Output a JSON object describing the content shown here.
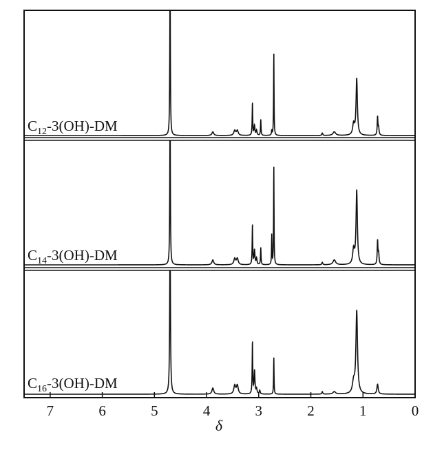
{
  "chart_data": {
    "type": "line",
    "xlabel": "δ",
    "xlim": [
      7.5,
      0
    ],
    "x_reversed": true,
    "x_ticks": [
      7,
      6,
      5,
      4,
      3,
      2,
      1,
      0
    ],
    "x_tick_labels": [
      "7",
      "6",
      "5",
      "4",
      "3",
      "2",
      "1",
      "0"
    ],
    "grid": false,
    "line_color": "#111111",
    "intensity_units": "relative (panel full scale = 100, HDO peak clipped)",
    "panels": [
      {
        "label": {
          "prefix": "C",
          "sub": "12",
          "suffix": "-3(OH)-DM"
        },
        "peaks": [
          [
            4.7,
            140,
            0.006
          ],
          [
            3.88,
            3,
            0.02
          ],
          [
            3.46,
            4,
            0.02
          ],
          [
            3.41,
            4,
            0.02
          ],
          [
            3.12,
            27,
            0.006
          ],
          [
            3.08,
            8,
            0.01
          ],
          [
            3.04,
            4,
            0.01
          ],
          [
            2.96,
            13,
            0.006
          ],
          [
            2.75,
            4,
            0.006
          ],
          [
            2.71,
            67,
            0.005
          ],
          [
            1.78,
            2,
            0.01
          ],
          [
            1.55,
            3,
            0.03
          ],
          [
            1.18,
            9,
            0.02
          ],
          [
            1.12,
            46,
            0.015
          ],
          [
            0.72,
            15,
            0.008
          ],
          [
            0.7,
            6,
            0.01
          ]
        ]
      },
      {
        "label": {
          "prefix": "C",
          "sub": "14",
          "suffix": "-3(OH)-DM"
        },
        "peaks": [
          [
            4.7,
            140,
            0.006
          ],
          [
            3.88,
            4,
            0.02
          ],
          [
            3.46,
            5,
            0.02
          ],
          [
            3.41,
            5,
            0.02
          ],
          [
            3.12,
            33,
            0.006
          ],
          [
            3.08,
            12,
            0.01
          ],
          [
            3.04,
            5,
            0.01
          ],
          [
            2.96,
            14,
            0.006
          ],
          [
            2.75,
            24,
            0.005
          ],
          [
            2.71,
            80,
            0.005
          ],
          [
            1.78,
            2,
            0.01
          ],
          [
            1.55,
            4,
            0.03
          ],
          [
            1.18,
            12,
            0.02
          ],
          [
            1.12,
            60,
            0.015
          ],
          [
            0.72,
            19,
            0.008
          ],
          [
            0.7,
            9,
            0.01
          ]
        ]
      },
      {
        "label": {
          "prefix": "C",
          "sub": "16",
          "suffix": "-3(OH)-DM"
        },
        "peaks": [
          [
            4.7,
            140,
            0.008
          ],
          [
            3.88,
            5,
            0.02
          ],
          [
            3.46,
            7,
            0.02
          ],
          [
            3.41,
            7,
            0.02
          ],
          [
            3.12,
            43,
            0.006
          ],
          [
            3.08,
            19,
            0.01
          ],
          [
            3.04,
            4,
            0.01
          ],
          [
            2.98,
            3,
            0.01
          ],
          [
            2.71,
            30,
            0.005
          ],
          [
            1.78,
            2,
            0.01
          ],
          [
            1.55,
            2,
            0.03
          ],
          [
            1.18,
            9,
            0.025
          ],
          [
            1.12,
            67,
            0.018
          ],
          [
            0.72,
            8,
            0.015
          ]
        ]
      }
    ]
  }
}
